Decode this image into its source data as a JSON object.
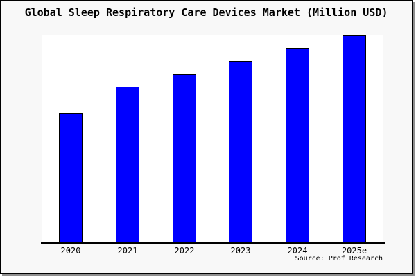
{
  "chart_data": {
    "type": "bar",
    "title": "Global Sleep Respiratory Care Devices Market (Million USD)",
    "categories": [
      "2020",
      "2021",
      "2022",
      "2023",
      "2024",
      "2025e"
    ],
    "values": [
      62.7,
      75.2,
      81.5,
      87.6,
      93.7,
      100
    ],
    "values_note": "relative scale estimated from bar heights; chart displays no y-axis or value labels (2025e bar = 100)",
    "xlabel": "",
    "ylabel": "",
    "ylim": [
      0,
      100
    ],
    "grid": false,
    "legend": false,
    "bar_color": "#0000ff",
    "bar_border_color": "#000000"
  },
  "footer": {
    "source": "Source: Prof Research"
  },
  "colors": {
    "page_background": "#f8f8f8",
    "plot_background": "#ffffff",
    "axis": "#000000",
    "frame_border": "#000000",
    "frame_shadow": "#8f8f8f",
    "text": "#000000"
  }
}
